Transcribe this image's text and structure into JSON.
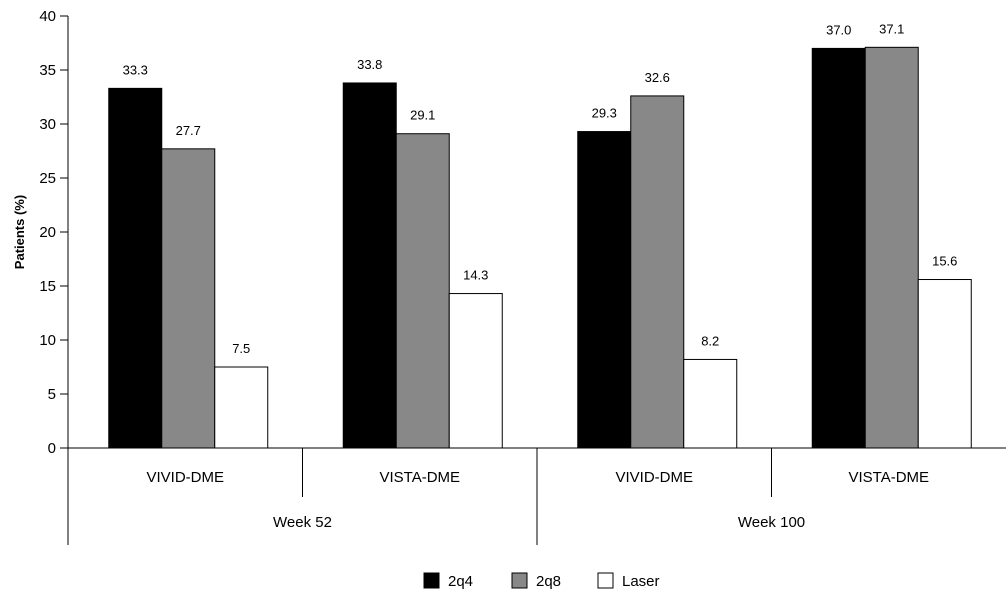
{
  "chart_data": {
    "type": "bar",
    "title": "",
    "xlabel": "",
    "ylabel": "Patients (%)",
    "ylim": [
      0,
      40
    ],
    "yticks": [
      0,
      5,
      10,
      15,
      20,
      25,
      30,
      35,
      40
    ],
    "grid": false,
    "legend_position": "bottom",
    "groups": [
      {
        "label": "Week 52",
        "categories": [
          "VIVID-DME",
          "VISTA-DME"
        ]
      },
      {
        "label": "Week 100",
        "categories": [
          "VIVID-DME",
          "VISTA-DME"
        ]
      }
    ],
    "categories": [
      "VIVID-DME",
      "VISTA-DME",
      "VIVID-DME",
      "VISTA-DME"
    ],
    "series": [
      {
        "name": "2q4",
        "color": "#000000",
        "values": [
          33.3,
          33.8,
          29.3,
          37.0
        ],
        "labels": [
          "33.3",
          "33.8",
          "29.3",
          "37.0"
        ]
      },
      {
        "name": "2q8",
        "color": "#888888",
        "values": [
          27.7,
          29.1,
          32.6,
          37.1
        ],
        "labels": [
          "27.7",
          "29.1",
          "32.6",
          "37.1"
        ]
      },
      {
        "name": "Laser",
        "color": "#ffffff",
        "values": [
          7.5,
          14.3,
          8.2,
          15.6
        ],
        "labels": [
          "7.5",
          "14.3",
          "8.2",
          "15.6"
        ]
      }
    ]
  }
}
